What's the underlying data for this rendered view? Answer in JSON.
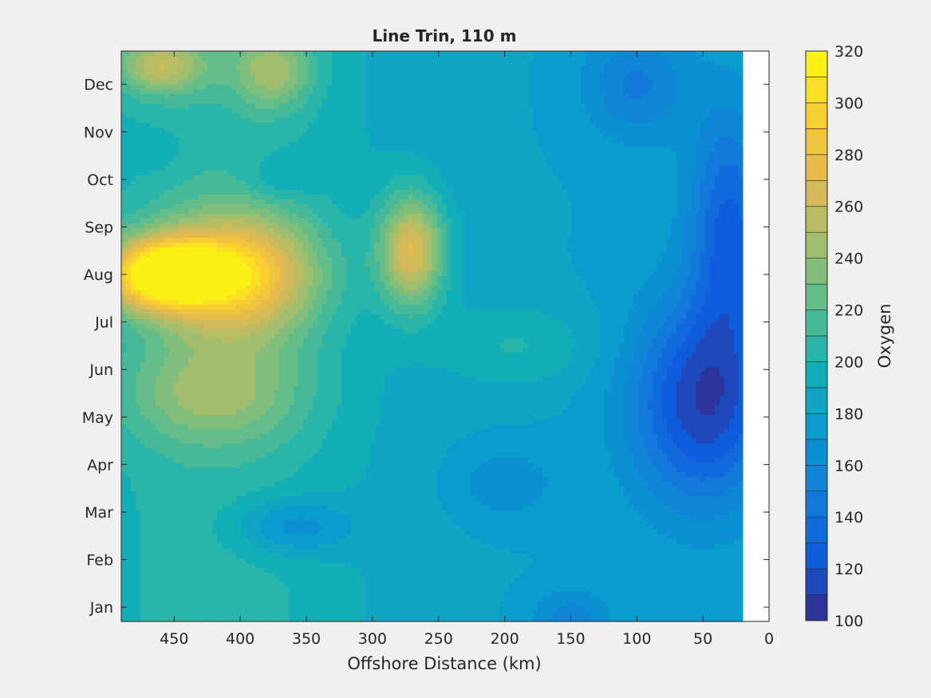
{
  "chart_data": {
    "type": "heatmap",
    "title": "Line Trin, 110 m",
    "xlabel": "Offshore Distance (km)",
    "ylabel": "",
    "xlim": [
      490,
      0
    ],
    "x_reversed": true,
    "xticks": [
      450,
      400,
      350,
      300,
      250,
      200,
      150,
      100,
      50,
      0
    ],
    "y_categories": [
      "Jan",
      "Feb",
      "Mar",
      "Apr",
      "May",
      "Jun",
      "Jul",
      "Aug",
      "Sep",
      "Oct",
      "Nov",
      "Dec"
    ],
    "colorbar": {
      "label": "Oxygen",
      "range": [
        100,
        320
      ],
      "levels": [
        100,
        110,
        120,
        130,
        140,
        150,
        160,
        170,
        180,
        190,
        200,
        210,
        220,
        230,
        240,
        250,
        260,
        270,
        280,
        290,
        300,
        310,
        320
      ],
      "ticks": [
        100,
        120,
        140,
        160,
        180,
        200,
        220,
        240,
        260,
        280,
        300,
        320
      ],
      "colormap": "parula"
    },
    "no_data_below_km": 20,
    "grid": false,
    "features": [
      {
        "x": 460,
        "month": 8.0,
        "value": 305,
        "sx": 45,
        "sy": 0.75
      },
      {
        "x": 400,
        "month": 8.0,
        "value": 275,
        "sx": 60,
        "sy": 1.3
      },
      {
        "x": 270,
        "month": 8.5,
        "value": 265,
        "sx": 25,
        "sy": 1.2
      },
      {
        "x": 460,
        "month": 12.4,
        "value": 238,
        "sx": 35,
        "sy": 0.6
      },
      {
        "x": 375,
        "month": 12.3,
        "value": 228,
        "sx": 30,
        "sy": 0.8
      },
      {
        "x": 420,
        "month": 5.5,
        "value": 222,
        "sx": 70,
        "sy": 1.1
      },
      {
        "x": 190,
        "month": 6.5,
        "value": 200,
        "sx": 60,
        "sy": 0.9
      },
      {
        "x": 370,
        "month": 10.0,
        "value": 165,
        "sx": 25,
        "sy": 0.5
      },
      {
        "x": 465,
        "month": 10.6,
        "value": 168,
        "sx": 20,
        "sy": 0.4
      },
      {
        "x": 360,
        "month": 2.7,
        "value": 148,
        "sx": 45,
        "sy": 0.6
      },
      {
        "x": 200,
        "month": 3.6,
        "value": 162,
        "sx": 40,
        "sy": 0.8
      },
      {
        "x": 150,
        "month": 0.8,
        "value": 155,
        "sx": 30,
        "sy": 0.6
      },
      {
        "x": 100,
        "month": 12.0,
        "value": 148,
        "sx": 40,
        "sy": 1.2
      },
      {
        "x": 95,
        "month": 1.6,
        "value": 182,
        "sx": 25,
        "sy": 0.5
      },
      {
        "x": 50,
        "month": 5.3,
        "value": 112,
        "sx": 55,
        "sy": 2.2
      },
      {
        "x": 30,
        "month": 9.0,
        "value": 128,
        "sx": 30,
        "sy": 2.5
      }
    ],
    "background_value": 180
  }
}
